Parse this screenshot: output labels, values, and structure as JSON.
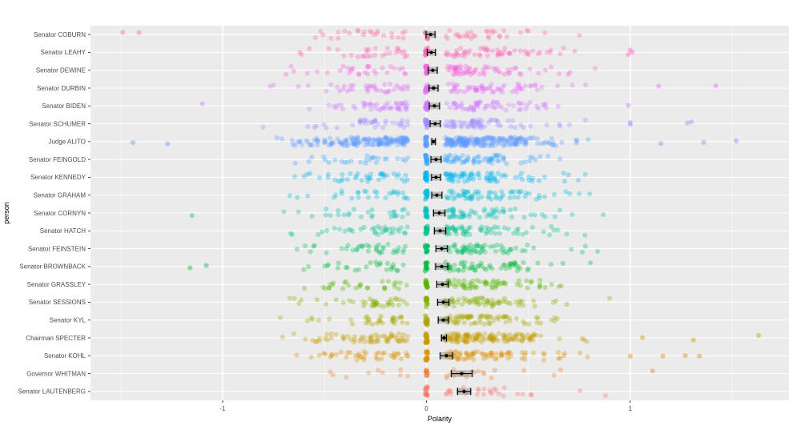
{
  "chart_data": {
    "type": "scatter",
    "title": "",
    "xlabel": "Polarity",
    "ylabel": "person",
    "xlim": [
      -1.65,
      1.78
    ],
    "x_ticks": [
      -1,
      0,
      1
    ],
    "x_tick_labels": [
      "-1",
      "0",
      "1"
    ],
    "x_minor_ticks": [
      -1.5,
      -0.5,
      0.5,
      1.5
    ],
    "legend": "none",
    "panel_bg": "#EBEBEB",
    "grid_major_color": "#FFFFFF",
    "grid_minor_color": "#F5F5F5",
    "tick_label_color": "#4D4D4D",
    "summary_color": "#000000",
    "point_alpha": 0.32,
    "note": "Jittered sentence-polarity points per speaker; black dot = mean polarity with error bars; colored blob at 0 = sentences with zero polarity",
    "people": [
      {
        "label": "Senator COBURN",
        "color": "#FF6A95",
        "n": 55,
        "left_w": 0.38,
        "core": [
          -0.65,
          0.85
        ],
        "mean": 0.02,
        "ci": 0.022,
        "zero_n": 5,
        "outliers": [
          -1.49,
          -1.41
        ]
      },
      {
        "label": "Senator LEAHY",
        "color": "#FF61B7",
        "n": 85,
        "left_w": 0.36,
        "core": [
          -0.86,
          0.9
        ],
        "mean": 0.024,
        "ci": 0.02,
        "zero_n": 12,
        "outliers": [
          0.99,
          1.0,
          1.01
        ]
      },
      {
        "label": "Senator DEWINE",
        "color": "#F364DE",
        "n": 95,
        "left_w": 0.34,
        "core": [
          -0.73,
          0.92
        ],
        "mean": 0.031,
        "ci": 0.022,
        "zero_n": 12,
        "outliers": []
      },
      {
        "label": "Senator DURBIN",
        "color": "#E26EF7",
        "n": 100,
        "left_w": 0.34,
        "core": [
          -0.81,
          0.9
        ],
        "mean": 0.035,
        "ci": 0.022,
        "zero_n": 12,
        "outliers": [
          1.14,
          1.42
        ]
      },
      {
        "label": "Senator BIDEN",
        "color": "#CC79FF",
        "n": 105,
        "left_w": 0.36,
        "core": [
          -0.9,
          0.9
        ],
        "mean": 0.039,
        "ci": 0.025,
        "zero_n": 12,
        "outliers": [
          -1.1,
          0.99
        ]
      },
      {
        "label": "Senator SCHUMER",
        "color": "#9C8DFF",
        "n": 100,
        "left_w": 0.36,
        "core": [
          -1.0,
          0.9
        ],
        "mean": 0.043,
        "ci": 0.025,
        "zero_n": 12,
        "outliers": [
          1.0,
          1.0,
          1.28,
          1.3
        ]
      },
      {
        "label": "Judge ALITO",
        "color": "#619CFF",
        "n": 360,
        "left_w": 0.4,
        "core": [
          -1.05,
          1.0
        ],
        "mean": 0.035,
        "ci": 0.009,
        "zero_n": 18,
        "outliers": [
          -1.44,
          -1.27,
          1.15,
          1.36,
          1.52
        ]
      },
      {
        "label": "Senator FEINGOLD",
        "color": "#3DA6FE",
        "n": 95,
        "left_w": 0.35,
        "core": [
          -0.85,
          0.9
        ],
        "mean": 0.047,
        "ci": 0.025,
        "zero_n": 14,
        "outliers": []
      },
      {
        "label": "Senator KENNEDY",
        "color": "#00B4F0",
        "n": 115,
        "left_w": 0.35,
        "core": [
          -0.9,
          0.9
        ],
        "mean": 0.047,
        "ci": 0.022,
        "zero_n": 14,
        "outliers": []
      },
      {
        "label": "Senator GRAHAM",
        "color": "#00BCD8",
        "n": 95,
        "left_w": 0.33,
        "core": [
          -0.77,
          0.9
        ],
        "mean": 0.051,
        "ci": 0.025,
        "zero_n": 12,
        "outliers": []
      },
      {
        "label": "Senator CORNYN",
        "color": "#00BFB4",
        "n": 85,
        "left_w": 0.33,
        "core": [
          -0.75,
          0.9
        ],
        "mean": 0.063,
        "ci": 0.028,
        "zero_n": 12,
        "outliers": [
          -1.15
        ]
      },
      {
        "label": "Senator HATCH",
        "color": "#00C08E",
        "n": 95,
        "left_w": 0.33,
        "core": [
          -0.8,
          0.9
        ],
        "mean": 0.067,
        "ci": 0.028,
        "zero_n": 12,
        "outliers": []
      },
      {
        "label": "Senator FEINSTEIN",
        "color": "#00BD64",
        "n": 100,
        "left_w": 0.33,
        "core": [
          -0.66,
          0.9
        ],
        "mean": 0.075,
        "ci": 0.028,
        "zero_n": 12,
        "outliers": []
      },
      {
        "label": "Senator BROWNBACK",
        "color": "#00BA38",
        "n": 85,
        "left_w": 0.33,
        "core": [
          -0.75,
          0.9
        ],
        "mean": 0.075,
        "ci": 0.03,
        "zero_n": 10,
        "outliers": [
          -1.16,
          -1.08
        ]
      },
      {
        "label": "Senator GRASSLEY",
        "color": "#55B300",
        "n": 95,
        "left_w": 0.33,
        "core": [
          -0.75,
          0.9
        ],
        "mean": 0.079,
        "ci": 0.028,
        "zero_n": 12,
        "outliers": []
      },
      {
        "label": "Senator SESSIONS",
        "color": "#85AD00",
        "n": 105,
        "left_w": 0.34,
        "core": [
          -0.84,
          0.92
        ],
        "mean": 0.083,
        "ci": 0.028,
        "zero_n": 12,
        "outliers": []
      },
      {
        "label": "Senator KYL",
        "color": "#A8A400",
        "n": 105,
        "left_w": 0.33,
        "core": [
          -0.73,
          0.9
        ],
        "mean": 0.083,
        "ci": 0.025,
        "zero_n": 12,
        "outliers": []
      },
      {
        "label": "Chairman SPECTER",
        "color": "#C49A00",
        "n": 200,
        "left_w": 0.32,
        "core": [
          -0.8,
          1.0
        ],
        "mean": 0.086,
        "ci": 0.012,
        "zero_n": 16,
        "outliers": [
          1.06,
          1.31,
          1.63
        ]
      },
      {
        "label": "Senator KOHL",
        "color": "#D98F00",
        "n": 115,
        "left_w": 0.33,
        "core": [
          -0.78,
          0.9
        ],
        "mean": 0.098,
        "ci": 0.03,
        "zero_n": 12,
        "outliers": [
          1.0,
          1.16,
          1.27,
          1.34
        ]
      },
      {
        "label": "Governor WHITMAN",
        "color": "#EB8335",
        "n": 28,
        "left_w": 0.28,
        "core": [
          -0.72,
          0.9
        ],
        "mean": 0.173,
        "ci": 0.051,
        "zero_n": 8,
        "outliers": [
          1.11
        ]
      },
      {
        "label": "Senator LAUTENBERG",
        "color": "#F8766D",
        "n": 30,
        "left_w": 0.02,
        "core": [
          -0.35,
          0.88
        ],
        "mean": 0.185,
        "ci": 0.032,
        "zero_n": 10,
        "outliers": []
      }
    ]
  }
}
